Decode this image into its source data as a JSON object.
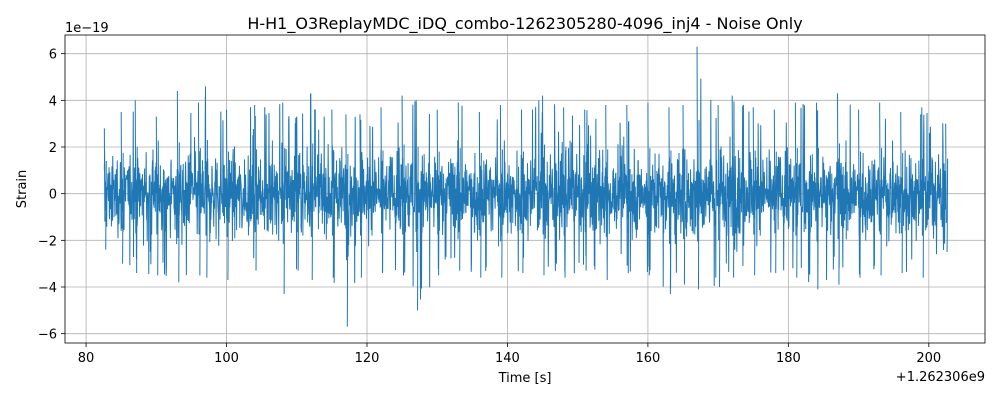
{
  "chart_data": {
    "type": "line",
    "title": "H-H1_O3ReplayMDC_iDQ_combo-1262305280-4096_inj4 - Noise Only",
    "xlabel": "Time [s]",
    "ylabel": "Strain",
    "x_offset_label": "+1.262306e9",
    "y_exponent_label": "1e−19",
    "xlim": [
      77,
      208
    ],
    "ylim": [
      -6.4,
      6.8
    ],
    "x_ticks": [
      80,
      100,
      120,
      140,
      160,
      180,
      200
    ],
    "x_tick_labels": [
      "80",
      "100",
      "120",
      "140",
      "160",
      "180",
      "200"
    ],
    "y_ticks": [
      -6,
      -4,
      -2,
      0,
      2,
      4,
      6
    ],
    "y_tick_labels": [
      "−6",
      "−4",
      "−2",
      "0",
      "2",
      "4",
      "6"
    ],
    "grid": true,
    "series_color": "#1f77b4",
    "series": [
      {
        "x_start": 82.6,
        "x_end": 202.4,
        "baseline_std": 0.75,
        "envelope": {
          "x": [
            82.6,
            85,
            87,
            90,
            93,
            96,
            97,
            100,
            104,
            108,
            110,
            112,
            115,
            117,
            119,
            122,
            125,
            127,
            130,
            133,
            136,
            139,
            142,
            145,
            148,
            151,
            154,
            157,
            160,
            163,
            165,
            167,
            170,
            172,
            175,
            178,
            181,
            184,
            187,
            190,
            193,
            196,
            199,
            202.4
          ],
          "max": [
            2.8,
            3.5,
            4.0,
            3.3,
            4.4,
            3.9,
            4.6,
            3.6,
            3.8,
            3.9,
            3.3,
            4.3,
            3.6,
            3.4,
            3.4,
            3.7,
            4.2,
            4.0,
            3.6,
            3.9,
            3.5,
            3.8,
            3.6,
            4.2,
            3.7,
            3.6,
            3.8,
            3.8,
            3.9,
            3.7,
            3.8,
            6.3,
            3.8,
            4.2,
            3.7,
            3.6,
            3.9,
            3.9,
            4.3,
            3.6,
            3.9,
            3.5,
            3.7,
            3.0
          ],
          "min": [
            -2.4,
            -3.0,
            -3.4,
            -3.5,
            -3.8,
            -3.5,
            -3.6,
            -3.7,
            -3.3,
            -4.3,
            -3.3,
            -3.7,
            -3.6,
            -5.7,
            -3.6,
            -3.4,
            -3.5,
            -5.0,
            -3.5,
            -3.3,
            -3.6,
            -3.6,
            -3.4,
            -3.5,
            -3.6,
            -3.3,
            -3.7,
            -3.4,
            -3.5,
            -4.3,
            -3.9,
            -4.1,
            -4.0,
            -3.6,
            -3.5,
            -3.4,
            -3.6,
            -4.1,
            -3.9,
            -3.6,
            -3.5,
            -3.4,
            -3.6,
            -2.5
          ]
        }
      }
    ]
  }
}
